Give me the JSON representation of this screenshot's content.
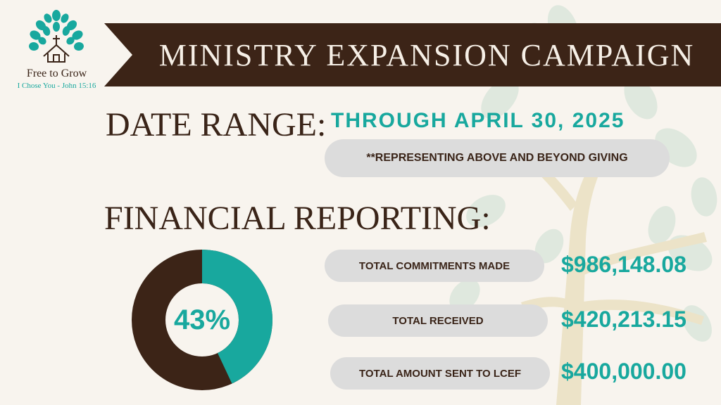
{
  "logo": {
    "name": "Free to Grow",
    "tagline": "I Chose You - John 15:16"
  },
  "banner": {
    "title": "MINISTRY EXPANSION CAMPAIGN"
  },
  "date_range": {
    "label": "DATE RANGE:",
    "value": "THROUGH APRIL 30, 2025",
    "note": "**REPRESENTING ABOVE AND BEYOND GIVING"
  },
  "financial": {
    "label": "FINANCIAL REPORTING:",
    "percent_label": "43%",
    "percent_value": 0.43,
    "stats": [
      {
        "label": "TOTAL COMMITMENTS MADE",
        "value": "$986,148.08"
      },
      {
        "label": "TOTAL RECEIVED",
        "value": "$420,213.15"
      },
      {
        "label": "TOTAL AMOUNT SENT TO LCEF",
        "value": "$400,000.00"
      }
    ]
  },
  "colors": {
    "brown": "#3c2417",
    "teal": "#18a89e",
    "pill": "#dcdcdc",
    "background": "#f8f4ee"
  }
}
